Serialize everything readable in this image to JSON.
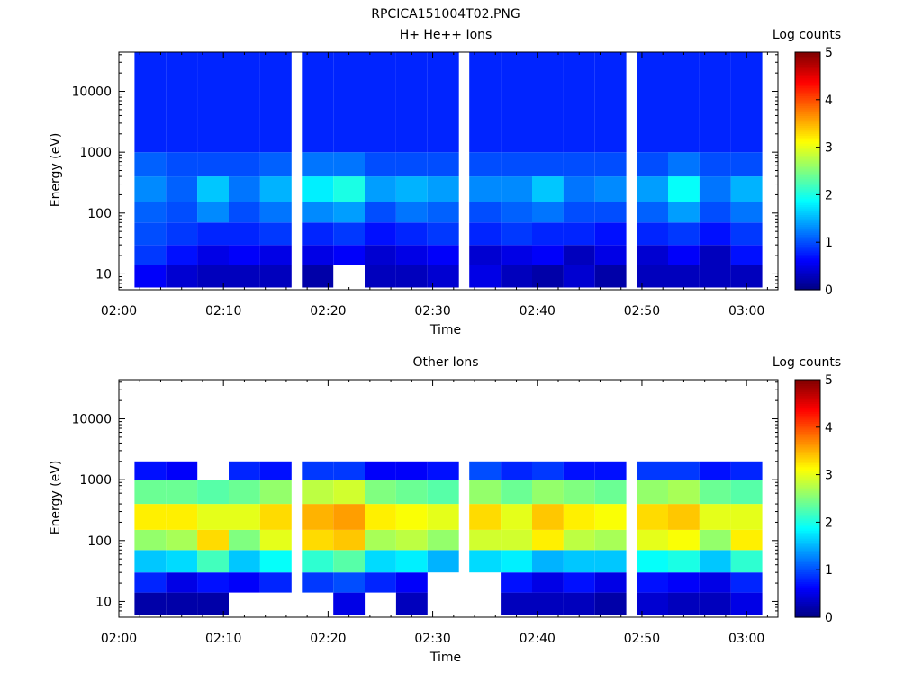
{
  "figure_title": "RPCICA151004T02.PNG",
  "chart_data": [
    {
      "type": "heatmap",
      "title": "H+ He++ Ions",
      "xlabel": "Time",
      "ylabel": "Energy (eV)",
      "ylog": true,
      "ylim": [
        5.5,
        44000
      ],
      "xlim": [
        "02:00",
        "03:03"
      ],
      "x_ticks": [
        "02:00",
        "02:10",
        "02:20",
        "02:30",
        "02:40",
        "02:50",
        "03:00"
      ],
      "y_ticks": [
        "10",
        "100",
        "1000",
        "10000"
      ],
      "colorbar": {
        "label": "Log counts",
        "min": 0,
        "max": 5,
        "ticks": [
          "0",
          "1",
          "2",
          "3",
          "4",
          "5"
        ]
      },
      "time_bins": [
        "02:03",
        "02:06",
        "02:09",
        "02:12",
        "02:15",
        "02:19",
        "02:22",
        "02:25",
        "02:28",
        "02:31",
        "02:35",
        "02:38",
        "02:41",
        "02:44",
        "02:47",
        "02:51",
        "02:54",
        "02:57",
        "03:00"
      ],
      "energy_bands": [
        {
          "e_min": 6,
          "e_max": 14,
          "values": [
            0.6,
            0.4,
            0.3,
            0.3,
            0.3,
            0.2,
            null,
            0.3,
            0.3,
            0.4,
            0.5,
            0.3,
            0.2,
            0.4,
            0.2,
            0.3,
            0.3,
            0.3,
            0.3
          ]
        },
        {
          "e_min": 14,
          "e_max": 30,
          "values": [
            0.9,
            0.7,
            0.5,
            0.6,
            0.5,
            0.5,
            0.6,
            0.4,
            0.5,
            0.6,
            0.4,
            0.5,
            0.6,
            0.3,
            0.5,
            0.4,
            0.6,
            0.3,
            0.7
          ]
        },
        {
          "e_min": 30,
          "e_max": 70,
          "values": [
            1.0,
            0.9,
            0.8,
            0.8,
            0.9,
            0.8,
            0.9,
            0.7,
            0.8,
            0.9,
            0.8,
            0.9,
            0.8,
            0.8,
            0.7,
            0.8,
            0.9,
            0.7,
            0.9
          ]
        },
        {
          "e_min": 70,
          "e_max": 150,
          "values": [
            1.1,
            1.0,
            1.3,
            1.0,
            1.2,
            1.3,
            1.4,
            1.0,
            1.2,
            1.1,
            1.0,
            1.1,
            1.2,
            1.0,
            1.0,
            1.1,
            1.4,
            1.0,
            1.2
          ]
        },
        {
          "e_min": 150,
          "e_max": 400,
          "values": [
            1.3,
            1.1,
            1.6,
            1.2,
            1.5,
            1.8,
            2.0,
            1.4,
            1.5,
            1.4,
            1.3,
            1.3,
            1.6,
            1.2,
            1.3,
            1.4,
            1.9,
            1.2,
            1.5
          ]
        },
        {
          "e_min": 400,
          "e_max": 1000,
          "values": [
            1.1,
            1.0,
            1.0,
            1.0,
            1.1,
            1.2,
            1.2,
            1.0,
            1.0,
            1.0,
            1.0,
            1.0,
            1.0,
            1.0,
            1.0,
            1.0,
            1.2,
            1.0,
            1.0
          ]
        },
        {
          "e_min": 1000,
          "e_max": 44000,
          "values": [
            0.8,
            0.8,
            0.8,
            0.8,
            0.8,
            0.8,
            0.8,
            0.8,
            0.8,
            0.8,
            0.8,
            0.8,
            0.8,
            0.8,
            0.8,
            0.8,
            0.8,
            0.8,
            0.8
          ]
        }
      ]
    },
    {
      "type": "heatmap",
      "title": "Other Ions",
      "xlabel": "Time",
      "ylabel": "Energy (eV)",
      "ylog": true,
      "ylim": [
        5.5,
        44000
      ],
      "xlim": [
        "02:00",
        "03:03"
      ],
      "x_ticks": [
        "02:00",
        "02:10",
        "02:20",
        "02:30",
        "02:40",
        "02:50",
        "03:00"
      ],
      "y_ticks": [
        "10",
        "100",
        "1000",
        "10000"
      ],
      "colorbar": {
        "label": "Log counts",
        "min": 0,
        "max": 5,
        "ticks": [
          "0",
          "1",
          "2",
          "3",
          "4",
          "5"
        ]
      },
      "time_bins": [
        "02:03",
        "02:06",
        "02:09",
        "02:12",
        "02:15",
        "02:19",
        "02:22",
        "02:25",
        "02:28",
        "02:31",
        "02:35",
        "02:38",
        "02:41",
        "02:44",
        "02:47",
        "02:51",
        "02:54",
        "02:57",
        "03:00"
      ],
      "energy_bands": [
        {
          "e_min": 6,
          "e_max": 14,
          "values": [
            0.2,
            0.2,
            0.2,
            null,
            null,
            null,
            0.5,
            null,
            0.3,
            null,
            null,
            0.3,
            0.3,
            0.3,
            0.2,
            0.4,
            0.3,
            0.3,
            0.5
          ]
        },
        {
          "e_min": 14,
          "e_max": 30,
          "values": [
            0.8,
            0.5,
            0.7,
            0.6,
            0.8,
            0.9,
            1.0,
            0.8,
            0.6,
            null,
            null,
            0.7,
            0.5,
            0.7,
            0.5,
            0.7,
            0.6,
            0.5,
            0.8
          ]
        },
        {
          "e_min": 30,
          "e_max": 70,
          "values": [
            1.6,
            1.7,
            2.2,
            1.6,
            1.9,
            2.1,
            2.3,
            1.7,
            1.8,
            1.5,
            1.7,
            1.8,
            1.5,
            1.6,
            1.6,
            1.9,
            2.0,
            1.6,
            2.1
          ]
        },
        {
          "e_min": 70,
          "e_max": 150,
          "values": [
            2.6,
            2.7,
            3.3,
            2.5,
            3.0,
            3.3,
            3.4,
            2.7,
            2.8,
            2.6,
            2.9,
            2.9,
            3.2,
            2.8,
            2.7,
            3.0,
            3.1,
            2.6,
            3.2
          ]
        },
        {
          "e_min": 150,
          "e_max": 400,
          "values": [
            3.2,
            3.2,
            3.0,
            3.0,
            3.3,
            3.5,
            3.6,
            3.2,
            3.1,
            3.0,
            3.3,
            3.0,
            3.4,
            3.2,
            3.1,
            3.3,
            3.4,
            3.0,
            3.0
          ]
        },
        {
          "e_min": 400,
          "e_max": 1000,
          "values": [
            2.4,
            2.4,
            2.3,
            2.4,
            2.6,
            2.8,
            2.9,
            2.5,
            2.4,
            2.3,
            2.6,
            2.4,
            2.6,
            2.5,
            2.4,
            2.6,
            2.7,
            2.4,
            2.3
          ]
        },
        {
          "e_min": 1000,
          "e_max": 2000,
          "values": [
            0.7,
            0.6,
            null,
            0.8,
            0.7,
            0.9,
            0.9,
            0.6,
            0.6,
            0.7,
            1.0,
            0.8,
            0.9,
            0.7,
            0.7,
            0.9,
            0.9,
            0.7,
            0.8
          ]
        }
      ]
    }
  ]
}
